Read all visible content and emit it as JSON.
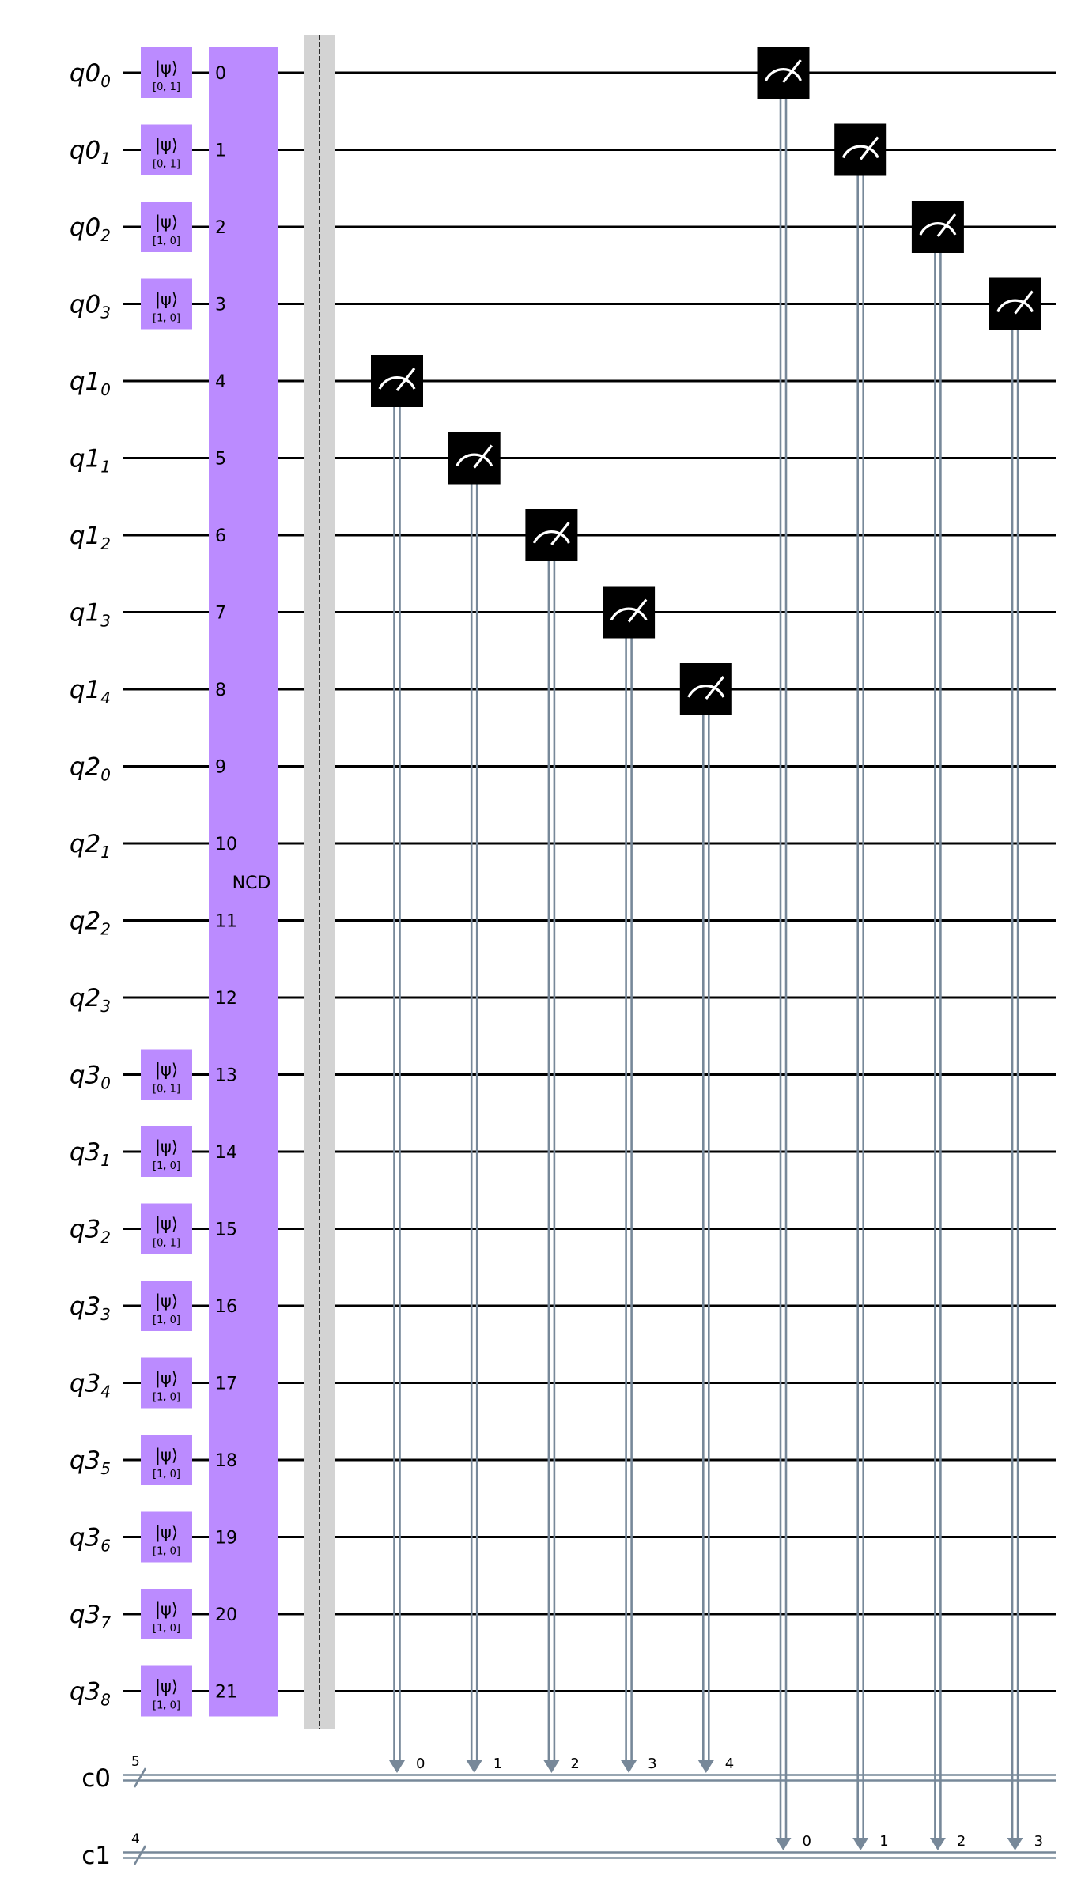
{
  "circuit": {
    "quantum_registers": [
      {
        "name": "q0",
        "qubits": [
          "0",
          "1",
          "2",
          "3"
        ]
      },
      {
        "name": "q1",
        "qubits": [
          "0",
          "1",
          "2",
          "3",
          "4"
        ]
      },
      {
        "name": "q2",
        "qubits": [
          "0",
          "1",
          "2",
          "3"
        ]
      },
      {
        "name": "q3",
        "qubits": [
          "0",
          "1",
          "2",
          "3",
          "4",
          "5",
          "6",
          "7",
          "8"
        ]
      }
    ],
    "classical_registers": [
      {
        "name": "c0",
        "size": "5"
      },
      {
        "name": "c1",
        "size": "4"
      }
    ],
    "initialize_gates": [
      {
        "wire": 0,
        "ket": "|ψ⟩",
        "value": "[0, 1]"
      },
      {
        "wire": 1,
        "ket": "|ψ⟩",
        "value": "[0, 1]"
      },
      {
        "wire": 2,
        "ket": "|ψ⟩",
        "value": "[1, 0]"
      },
      {
        "wire": 3,
        "ket": "|ψ⟩",
        "value": "[1, 0]"
      },
      {
        "wire": 13,
        "ket": "|ψ⟩",
        "value": "[0, 1]"
      },
      {
        "wire": 14,
        "ket": "|ψ⟩",
        "value": "[1, 0]"
      },
      {
        "wire": 15,
        "ket": "|ψ⟩",
        "value": "[0, 1]"
      },
      {
        "wire": 16,
        "ket": "|ψ⟩",
        "value": "[1, 0]"
      },
      {
        "wire": 17,
        "ket": "|ψ⟩",
        "value": "[1, 0]"
      },
      {
        "wire": 18,
        "ket": "|ψ⟩",
        "value": "[1, 0]"
      },
      {
        "wire": 19,
        "ket": "|ψ⟩",
        "value": "[1, 0]"
      },
      {
        "wire": 20,
        "ket": "|ψ⟩",
        "value": "[1, 0]"
      },
      {
        "wire": 21,
        "ket": "|ψ⟩",
        "value": "[1, 0]"
      }
    ],
    "ncd_gate": {
      "label": "NCD",
      "indices": [
        "0",
        "1",
        "2",
        "3",
        "4",
        "5",
        "6",
        "7",
        "8",
        "9",
        "10",
        "11",
        "12",
        "13",
        "14",
        "15",
        "16",
        "17",
        "18",
        "19",
        "20",
        "21"
      ]
    },
    "measurements": [
      {
        "wire": 4,
        "creg": 0,
        "bit": "0"
      },
      {
        "wire": 5,
        "creg": 0,
        "bit": "1"
      },
      {
        "wire": 6,
        "creg": 0,
        "bit": "2"
      },
      {
        "wire": 7,
        "creg": 0,
        "bit": "3"
      },
      {
        "wire": 8,
        "creg": 0,
        "bit": "4"
      },
      {
        "wire": 0,
        "creg": 1,
        "bit": "0"
      },
      {
        "wire": 1,
        "creg": 1,
        "bit": "1"
      },
      {
        "wire": 2,
        "creg": 1,
        "bit": "2"
      },
      {
        "wire": 3,
        "creg": 1,
        "bit": "3"
      }
    ],
    "colors": {
      "gate_fill": "#bb8bff",
      "measure_fill": "#000000",
      "classical": "#778899",
      "barrier": "#d3d3d3"
    }
  }
}
